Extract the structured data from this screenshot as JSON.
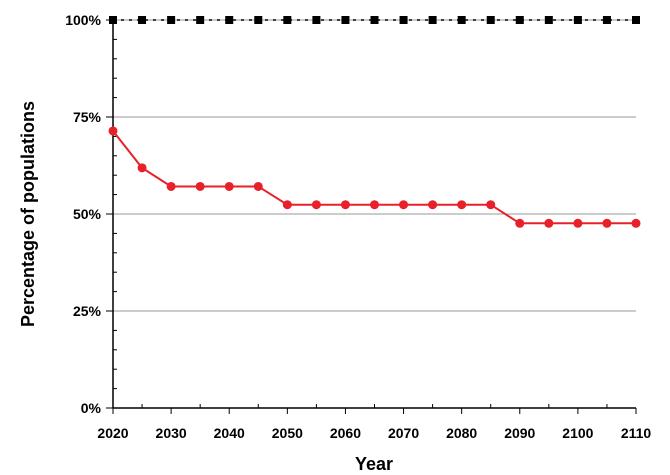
{
  "chart_data": {
    "type": "line",
    "xlabel": "Year",
    "ylabel": "Percentage of populations",
    "xlim": [
      2020,
      2110
    ],
    "ylim": [
      0,
      100
    ],
    "x_ticks": [
      2020,
      2030,
      2040,
      2050,
      2060,
      2070,
      2080,
      2090,
      2100,
      2110
    ],
    "y_ticks": [
      0,
      25,
      50,
      75,
      100
    ],
    "y_tick_labels": [
      "0%",
      "25%",
      "50%",
      "75%",
      "100%"
    ],
    "grid": "horizontal",
    "series": [
      {
        "color": "#e8202a",
        "marker": "circle",
        "line": "solid",
        "x": [
          2020,
          2025,
          2030,
          2035,
          2040,
          2045,
          2050,
          2055,
          2060,
          2065,
          2070,
          2075,
          2080,
          2085,
          2090,
          2095,
          2100,
          2105,
          2110
        ],
        "y": [
          71.4,
          61.9,
          57.1,
          57.1,
          57.1,
          57.1,
          52.4,
          52.4,
          52.4,
          52.4,
          52.4,
          52.4,
          52.4,
          52.4,
          47.6,
          47.6,
          47.6,
          47.6,
          47.6
        ]
      },
      {
        "color": "#000000",
        "marker": "square",
        "line": "dotted",
        "x": [
          2020,
          2025,
          2030,
          2035,
          2040,
          2045,
          2050,
          2055,
          2060,
          2065,
          2070,
          2075,
          2080,
          2085,
          2090,
          2095,
          2100,
          2105,
          2110
        ],
        "y": [
          100,
          100,
          100,
          100,
          100,
          100,
          100,
          100,
          100,
          100,
          100,
          100,
          100,
          100,
          100,
          100,
          100,
          100,
          100
        ]
      }
    ]
  }
}
